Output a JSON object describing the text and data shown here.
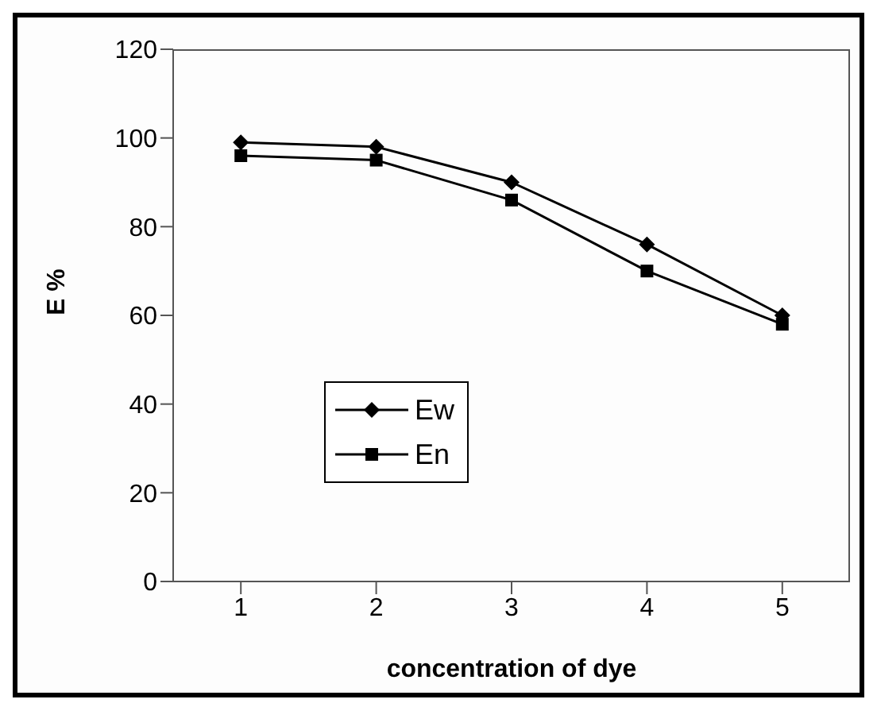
{
  "chart_data": {
    "type": "line",
    "xlabel": "concentration of dye",
    "ylabel": "E %",
    "categories": [
      "1",
      "2",
      "3",
      "4",
      "5"
    ],
    "series": [
      {
        "name": "Ew",
        "color": "#000000",
        "marker": "diamond",
        "values": [
          99,
          98,
          90,
          76,
          60
        ]
      },
      {
        "name": "En",
        "color": "#000000",
        "marker": "square",
        "values": [
          96,
          95,
          86,
          70,
          58
        ]
      }
    ],
    "ylim": [
      0,
      120
    ],
    "yticks": [
      0,
      20,
      40,
      60,
      80,
      100,
      120
    ],
    "grid": false,
    "legend": "bottom left",
    "line_style": "solid"
  }
}
